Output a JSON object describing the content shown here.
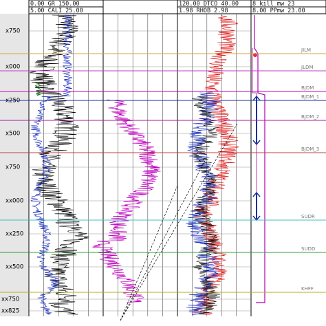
{
  "header": {
    "track1": {
      "line1": "0.00   GR   150.00",
      "line2": "5.00   CALI   25.00"
    },
    "track3": {
      "line1": "120.00  DTCO  40.00",
      "line2": "1.98  RHOB  2.98"
    },
    "track4": {
      "line1": "8    kill_mw    23",
      "line2": "8.00  PPmw  23.00"
    }
  },
  "depths": [
    "x750",
    "x000",
    "x250",
    "x500",
    "x750",
    "xx000",
    "xx250",
    "xx500",
    "xx750",
    "xx825"
  ],
  "tops": [
    "JILM",
    "JLDM",
    "BJDM",
    "BJDM_1",
    "BJDM_2",
    "BJDM_3",
    "SUDR",
    "SUDD",
    "KHFF"
  ]
}
